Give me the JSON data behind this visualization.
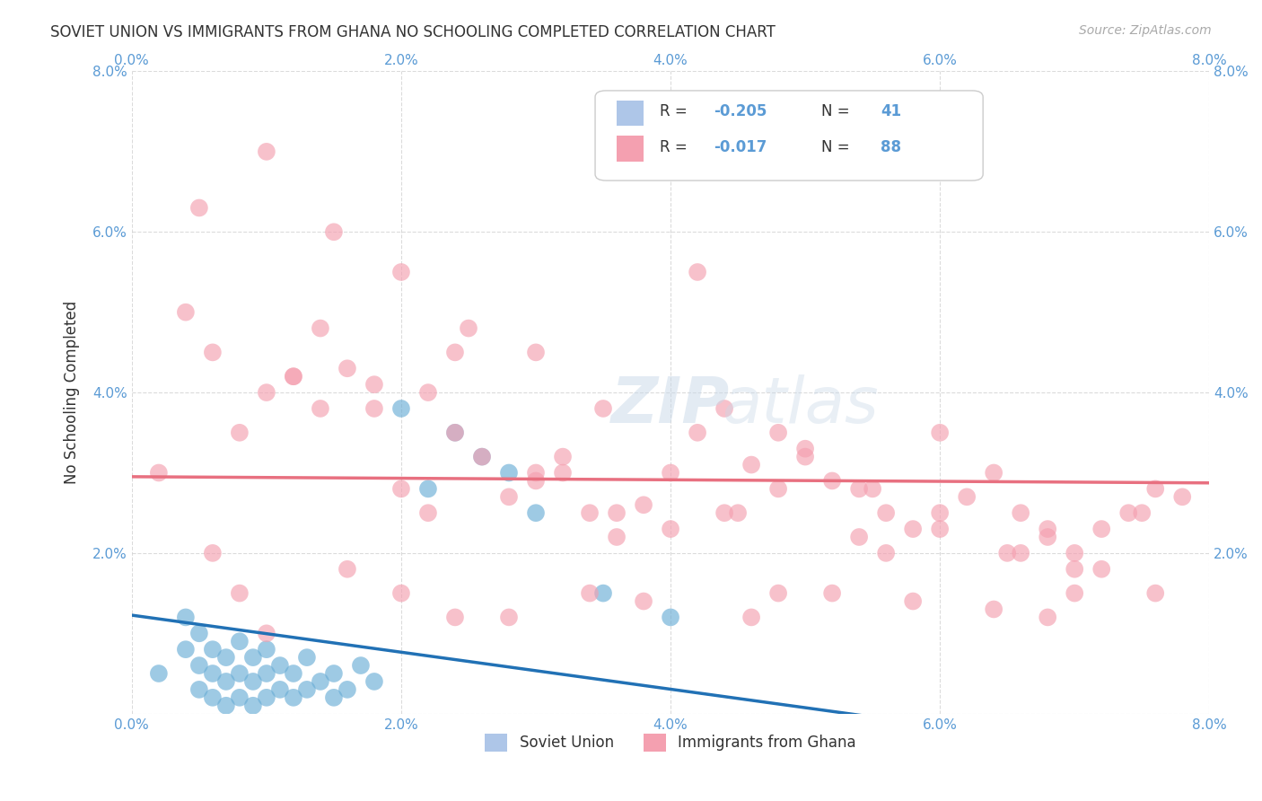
{
  "title": "SOVIET UNION VS IMMIGRANTS FROM GHANA NO SCHOOLING COMPLETED CORRELATION CHART",
  "source": "Source: ZipAtlas.com",
  "xlabel": "",
  "ylabel": "No Schooling Completed",
  "xlim": [
    0.0,
    0.08
  ],
  "ylim": [
    0.0,
    0.08
  ],
  "xticks": [
    0.0,
    0.02,
    0.04,
    0.06,
    0.08
  ],
  "yticks": [
    0.0,
    0.02,
    0.04,
    0.06,
    0.08
  ],
  "xticklabels": [
    "0.0%",
    "2.0%",
    "4.0%",
    "6.0%",
    "8.0%"
  ],
  "yticklabels": [
    "",
    "2.0%",
    "4.0%",
    "6.0%",
    "8.0%"
  ],
  "soviet_color": "#6baed6",
  "ghana_color": "#f4a0b0",
  "soviet_R": -0.205,
  "soviet_N": 41,
  "ghana_R": -0.017,
  "ghana_N": 88,
  "legend_R_label1": "R = -0.205   N = 41",
  "legend_R_label2": "R = -0.017   N = 88",
  "watermark": "ZIPatlas",
  "background_color": "#ffffff",
  "grid_color": "#cccccc",
  "soviet_line_color": "#2171b5",
  "ghana_line_color": "#e87080",
  "soviet_scatter_x": [
    0.002,
    0.004,
    0.004,
    0.005,
    0.005,
    0.005,
    0.006,
    0.006,
    0.006,
    0.007,
    0.007,
    0.007,
    0.008,
    0.008,
    0.008,
    0.009,
    0.009,
    0.009,
    0.01,
    0.01,
    0.01,
    0.011,
    0.011,
    0.012,
    0.012,
    0.013,
    0.013,
    0.014,
    0.015,
    0.015,
    0.016,
    0.017,
    0.018,
    0.02,
    0.022,
    0.024,
    0.026,
    0.028,
    0.03,
    0.035,
    0.04
  ],
  "soviet_scatter_y": [
    0.005,
    0.008,
    0.012,
    0.003,
    0.006,
    0.01,
    0.002,
    0.005,
    0.008,
    0.001,
    0.004,
    0.007,
    0.002,
    0.005,
    0.009,
    0.001,
    0.004,
    0.007,
    0.002,
    0.005,
    0.008,
    0.003,
    0.006,
    0.002,
    0.005,
    0.003,
    0.007,
    0.004,
    0.002,
    0.005,
    0.003,
    0.006,
    0.004,
    0.038,
    0.028,
    0.035,
    0.032,
    0.03,
    0.025,
    0.015,
    0.012
  ],
  "ghana_scatter_x": [
    0.002,
    0.004,
    0.006,
    0.008,
    0.01,
    0.012,
    0.014,
    0.016,
    0.018,
    0.02,
    0.022,
    0.024,
    0.026,
    0.028,
    0.03,
    0.032,
    0.034,
    0.036,
    0.038,
    0.04,
    0.042,
    0.044,
    0.046,
    0.048,
    0.05,
    0.052,
    0.054,
    0.056,
    0.058,
    0.06,
    0.062,
    0.064,
    0.066,
    0.068,
    0.07,
    0.072,
    0.074,
    0.076,
    0.078,
    0.005,
    0.01,
    0.015,
    0.02,
    0.025,
    0.03,
    0.035,
    0.04,
    0.045,
    0.05,
    0.055,
    0.06,
    0.065,
    0.07,
    0.075,
    0.012,
    0.018,
    0.024,
    0.03,
    0.036,
    0.042,
    0.048,
    0.054,
    0.06,
    0.066,
    0.072,
    0.014,
    0.022,
    0.032,
    0.044,
    0.056,
    0.068,
    0.008,
    0.016,
    0.024,
    0.034,
    0.046,
    0.058,
    0.07,
    0.006,
    0.02,
    0.038,
    0.052,
    0.064,
    0.076,
    0.01,
    0.028,
    0.048,
    0.068
  ],
  "ghana_scatter_y": [
    0.03,
    0.05,
    0.045,
    0.035,
    0.04,
    0.042,
    0.038,
    0.043,
    0.041,
    0.028,
    0.025,
    0.035,
    0.032,
    0.027,
    0.029,
    0.03,
    0.025,
    0.022,
    0.026,
    0.023,
    0.055,
    0.038,
    0.031,
    0.035,
    0.033,
    0.029,
    0.028,
    0.025,
    0.023,
    0.035,
    0.027,
    0.03,
    0.025,
    0.022,
    0.02,
    0.023,
    0.025,
    0.028,
    0.027,
    0.063,
    0.07,
    0.06,
    0.055,
    0.048,
    0.045,
    0.038,
    0.03,
    0.025,
    0.032,
    0.028,
    0.023,
    0.02,
    0.018,
    0.025,
    0.042,
    0.038,
    0.045,
    0.03,
    0.025,
    0.035,
    0.028,
    0.022,
    0.025,
    0.02,
    0.018,
    0.048,
    0.04,
    0.032,
    0.025,
    0.02,
    0.023,
    0.015,
    0.018,
    0.012,
    0.015,
    0.012,
    0.014,
    0.015,
    0.02,
    0.015,
    0.014,
    0.015,
    0.013,
    0.015,
    0.01,
    0.012,
    0.015,
    0.012
  ]
}
